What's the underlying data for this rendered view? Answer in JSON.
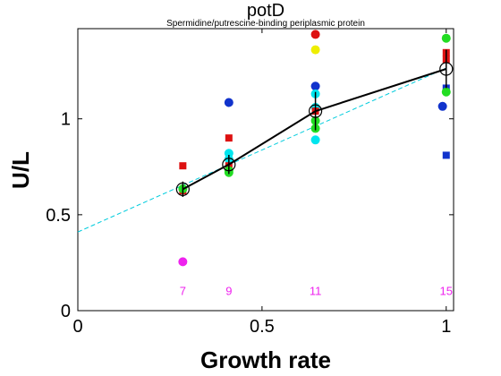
{
  "chart_data": {
    "type": "scatter",
    "title": "potD",
    "subtitle": "Spermidine/putrescine-binding periplasmic protein",
    "xlabel": "Growth rate",
    "ylabel": "U/L",
    "xlim": [
      0,
      1.02
    ],
    "ylim": [
      0,
      1.47
    ],
    "x_ticks": [
      {
        "value": 0,
        "label": "0"
      },
      {
        "value": 0.5,
        "label": "0.5"
      },
      {
        "value": 1,
        "label": "1"
      }
    ],
    "y_ticks": [
      {
        "value": 0,
        "label": "0"
      },
      {
        "value": 0.5,
        "label": "0.5"
      },
      {
        "value": 1,
        "label": "1"
      }
    ],
    "grid": false,
    "legend": "none",
    "mean_series": {
      "x": [
        0.285,
        0.41,
        0.645,
        1.0
      ],
      "y": [
        0.633,
        0.762,
        1.04,
        1.26
      ],
      "err": [
        0.04,
        0.05,
        0.1,
        0.1
      ],
      "color": "#000000"
    },
    "fit_line": {
      "x": [
        0.0,
        1.0
      ],
      "y": [
        0.41,
        1.265
      ],
      "color": "#00ccdd",
      "style": "dashed"
    },
    "replicates": [
      {
        "x": 0.285,
        "y": 0.755,
        "color": "#dd1111",
        "marker": "square"
      },
      {
        "x": 0.285,
        "y": 0.625,
        "color": "#dd1111",
        "marker": "square"
      },
      {
        "x": 0.285,
        "y": 0.635,
        "color": "#22dd22",
        "marker": "circle"
      },
      {
        "x": 0.285,
        "y": 0.255,
        "color": "#ee22ee",
        "marker": "circle"
      },
      {
        "x": 0.41,
        "y": 1.085,
        "color": "#1133cc",
        "marker": "circle"
      },
      {
        "x": 0.41,
        "y": 0.9,
        "color": "#dd1111",
        "marker": "square"
      },
      {
        "x": 0.41,
        "y": 0.82,
        "color": "#00e5ee",
        "marker": "circle"
      },
      {
        "x": 0.41,
        "y": 0.79,
        "color": "#00e5ee",
        "marker": "circle"
      },
      {
        "x": 0.41,
        "y": 0.755,
        "color": "#dd1111",
        "marker": "square"
      },
      {
        "x": 0.41,
        "y": 0.73,
        "color": "#22dd22",
        "marker": "circle"
      },
      {
        "x": 0.41,
        "y": 0.72,
        "color": "#22dd22",
        "marker": "circle"
      },
      {
        "x": 0.645,
        "y": 1.44,
        "color": "#dd1111",
        "marker": "circle"
      },
      {
        "x": 0.645,
        "y": 1.36,
        "color": "#eeee00",
        "marker": "circle"
      },
      {
        "x": 0.645,
        "y": 1.17,
        "color": "#1133cc",
        "marker": "circle"
      },
      {
        "x": 0.645,
        "y": 1.13,
        "color": "#00e5ee",
        "marker": "circle"
      },
      {
        "x": 0.645,
        "y": 1.06,
        "color": "#00e5ee",
        "marker": "circle"
      },
      {
        "x": 0.645,
        "y": 1.04,
        "color": "#dd1111",
        "marker": "square"
      },
      {
        "x": 0.645,
        "y": 0.99,
        "color": "#22dd22",
        "marker": "circle"
      },
      {
        "x": 0.645,
        "y": 0.95,
        "color": "#22dd22",
        "marker": "circle"
      },
      {
        "x": 0.645,
        "y": 0.89,
        "color": "#00e5ee",
        "marker": "circle"
      },
      {
        "x": 1.0,
        "y": 1.42,
        "color": "#22dd22",
        "marker": "circle"
      },
      {
        "x": 1.0,
        "y": 1.345,
        "color": "#dd1111",
        "marker": "square"
      },
      {
        "x": 1.0,
        "y": 1.31,
        "color": "#dd1111",
        "marker": "square"
      },
      {
        "x": 1.0,
        "y": 1.16,
        "color": "#1133cc",
        "marker": "square"
      },
      {
        "x": 1.0,
        "y": 1.14,
        "color": "#22dd22",
        "marker": "circle"
      },
      {
        "x": 0.99,
        "y": 1.065,
        "color": "#1133cc",
        "marker": "circle"
      },
      {
        "x": 1.0,
        "y": 0.81,
        "color": "#1133cc",
        "marker": "square"
      }
    ],
    "annotations": [
      {
        "x": 0.285,
        "y": 0.1,
        "text": "7",
        "color": "#ee22ee"
      },
      {
        "x": 0.41,
        "y": 0.1,
        "text": "9",
        "color": "#ee22ee"
      },
      {
        "x": 0.645,
        "y": 0.1,
        "text": "11",
        "color": "#ee22ee"
      },
      {
        "x": 1.0,
        "y": 0.1,
        "text": "15",
        "color": "#ee22ee"
      }
    ]
  }
}
